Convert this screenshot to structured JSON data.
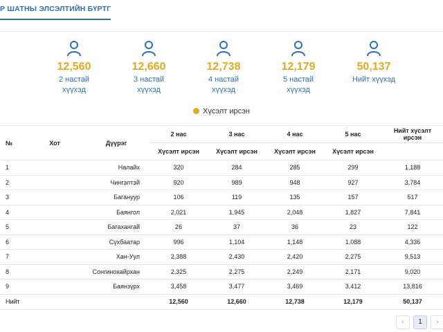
{
  "tab": {
    "label": "Р ШАТНЫ ЭЛСЭЛТИЙН БҮРТГЭЛ"
  },
  "stats": [
    {
      "value": "12,560",
      "label": "2 настай хүүхэд"
    },
    {
      "value": "12,660",
      "label": "3 настай хүүхэд"
    },
    {
      "value": "12,738",
      "label": "4 настай хүүхэд"
    },
    {
      "value": "12,179",
      "label": "5 настай хүүхэд"
    },
    {
      "value": "50,137",
      "label": "Нийт хүүхэд"
    }
  ],
  "legend": {
    "label": "Хүсэлт ирсэн"
  },
  "colors": {
    "accent": "#e0aa20",
    "primary": "#2a6fb8"
  },
  "table": {
    "headers": {
      "no": "№",
      "city": "Хот",
      "district": "Дүүрэг",
      "age2": "2 нас",
      "age3": "3 нас",
      "age4": "4 нас",
      "age5": "5 нас",
      "total": "Нийт хүсэлт ирсэн",
      "sub": "Хүсэлт ирсэн"
    },
    "rows": [
      {
        "no": "1",
        "city": "",
        "district": "Налайх",
        "a2": "320",
        "a3": "284",
        "a4": "285",
        "a5": "299",
        "total": "1,188"
      },
      {
        "no": "2",
        "city": "",
        "district": "Чингэлтэй",
        "a2": "920",
        "a3": "989",
        "a4": "948",
        "a5": "927",
        "total": "3,784"
      },
      {
        "no": "3",
        "city": "",
        "district": "Багануур",
        "a2": "106",
        "a3": "119",
        "a4": "135",
        "a5": "157",
        "total": "517"
      },
      {
        "no": "4",
        "city": "",
        "district": "Баянгол",
        "a2": "2,021",
        "a3": "1,945",
        "a4": "2,048",
        "a5": "1,827",
        "total": "7,841"
      },
      {
        "no": "5",
        "city": "",
        "district": "Багахангай",
        "a2": "26",
        "a3": "37",
        "a4": "36",
        "a5": "23",
        "total": "122"
      },
      {
        "no": "6",
        "city": "",
        "district": "Сүхбаатар",
        "a2": "996",
        "a3": "1,104",
        "a4": "1,148",
        "a5": "1,088",
        "total": "4,336"
      },
      {
        "no": "7",
        "city": "",
        "district": "Хан-Уул",
        "a2": "2,388",
        "a3": "2,430",
        "a4": "2,420",
        "a5": "2,275",
        "total": "9,513"
      },
      {
        "no": "8",
        "city": "",
        "district": "Сонгинохайрхан",
        "a2": "2,325",
        "a3": "2,275",
        "a4": "2,249",
        "a5": "2,171",
        "total": "9,020"
      },
      {
        "no": "9",
        "city": "",
        "district": "Баянзүрх",
        "a2": "3,458",
        "a3": "3,477",
        "a4": "3,469",
        "a5": "3,412",
        "total": "13,816"
      }
    ],
    "totals": {
      "label": "Нийт",
      "a2": "12,560",
      "a3": "12,660",
      "a4": "12,738",
      "a5": "12,179",
      "total": "50,137"
    }
  },
  "pagination": {
    "prev": "‹",
    "current": "1",
    "next": "›"
  }
}
